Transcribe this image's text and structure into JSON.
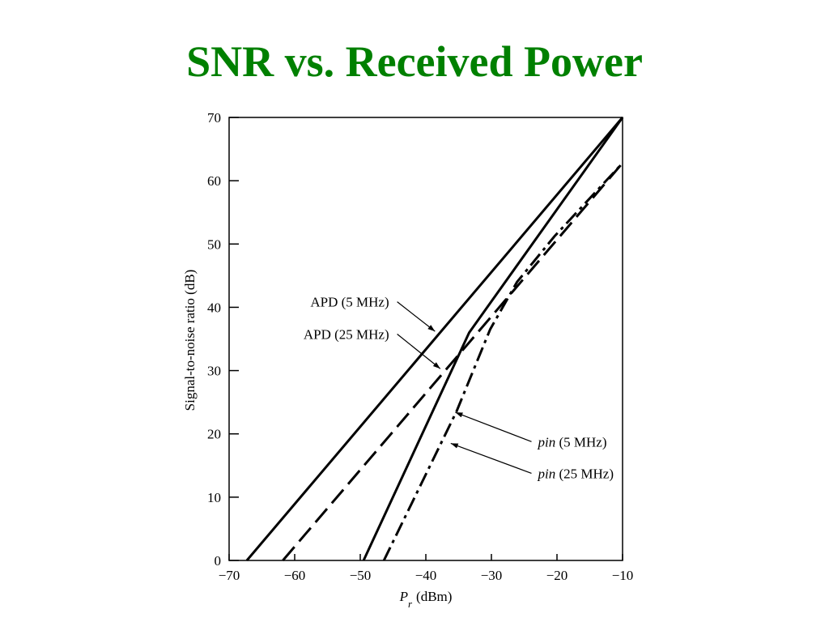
{
  "slide": {
    "title": "SNR vs. Received Power"
  },
  "chart_data": {
    "type": "line",
    "title": "",
    "xlabel": {
      "symbol": "P",
      "subscript": "r",
      "unit": "(dBm)"
    },
    "ylabel": "Signal-to-noise ratio (dB)",
    "xlim": [
      -70,
      -10
    ],
    "ylim": [
      0,
      70
    ],
    "xticks": [
      -70,
      -60,
      -50,
      -40,
      -30,
      -20,
      -10
    ],
    "xtick_labels": [
      "−70",
      "−60",
      "−50",
      "−40",
      "−30",
      "−20",
      "−10"
    ],
    "yticks": [
      0,
      10,
      20,
      30,
      40,
      50,
      60,
      70
    ],
    "grid": false,
    "series": [
      {
        "key": "apd5",
        "style": "solid",
        "points": [
          [
            -67.3,
            0
          ],
          [
            -10,
            70
          ]
        ]
      },
      {
        "key": "apd25",
        "style": "dashed",
        "points": [
          [
            -61.8,
            0
          ],
          [
            -10,
            62.8
          ]
        ]
      },
      {
        "key": "pin5",
        "style": "solid",
        "points": [
          [
            -49.5,
            0
          ],
          [
            -33.4,
            36
          ],
          [
            -10,
            70
          ]
        ]
      },
      {
        "key": "pin25",
        "style": "dashdot",
        "points": [
          [
            -46.4,
            0
          ],
          [
            -35.3,
            23.6
          ],
          [
            -30.2,
            36.5
          ],
          [
            -26.1,
            44
          ],
          [
            -20.4,
            51.2
          ],
          [
            -10,
            62.8
          ]
        ]
      }
    ],
    "annotations": [
      {
        "key": "apd5",
        "label": "APD (5 MHz)",
        "text_at": [
          -45.6,
          40.1
        ],
        "arrow_to": [
          -38.6,
          36.2
        ]
      },
      {
        "key": "apd25",
        "label": "APD (25 MHz)",
        "text_at": [
          -45.6,
          35
        ],
        "arrow_to": [
          -37.8,
          30.3
        ]
      },
      {
        "key": "pin5",
        "label_italic": "pin",
        "label": " (5 MHz)",
        "text_at": [
          -22.9,
          18
        ],
        "arrow_to": [
          -35.5,
          23.4
        ]
      },
      {
        "key": "pin25",
        "label_italic": "pin",
        "label": " (25 MHz)",
        "text_at": [
          -22.9,
          13
        ],
        "arrow_to": [
          -36.2,
          18.5
        ]
      }
    ]
  }
}
